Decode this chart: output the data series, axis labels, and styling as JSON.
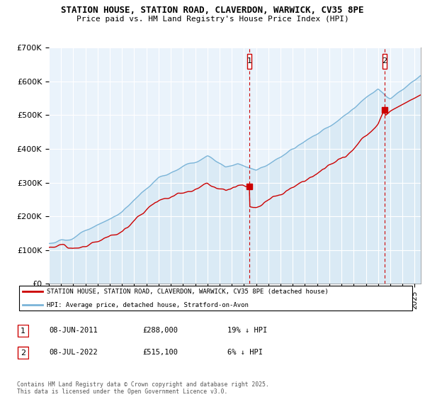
{
  "title_line1": "STATION HOUSE, STATION ROAD, CLAVERDON, WARWICK, CV35 8PE",
  "title_line2": "Price paid vs. HM Land Registry's House Price Index (HPI)",
  "ylim": [
    0,
    700000
  ],
  "yticks": [
    0,
    100000,
    200000,
    300000,
    400000,
    500000,
    600000,
    700000
  ],
  "ytick_labels": [
    "£0",
    "£100K",
    "£200K",
    "£300K",
    "£400K",
    "£500K",
    "£600K",
    "£700K"
  ],
  "hpi_color": "#7ab4d8",
  "hpi_fill_color": "#daeaf5",
  "price_color": "#cc0000",
  "vline_color": "#cc0000",
  "transaction1_x": 2011.44,
  "transaction1_price": 288000,
  "transaction2_x": 2022.52,
  "transaction2_price": 515100,
  "marker_color": "#cc0000",
  "legend_line1": "STATION HOUSE, STATION ROAD, CLAVERDON, WARWICK, CV35 8PE (detached house)",
  "legend_line2": "HPI: Average price, detached house, Stratford-on-Avon",
  "footnote": "Contains HM Land Registry data © Crown copyright and database right 2025.\nThis data is licensed under the Open Government Licence v3.0.",
  "table": [
    {
      "num": "1",
      "date": "08-JUN-2011",
      "price": "£288,000",
      "hpi": "19% ↓ HPI"
    },
    {
      "num": "2",
      "date": "08-JUL-2022",
      "price": "£515,100",
      "hpi": "6% ↓ HPI"
    }
  ],
  "xmin": 1995.0,
  "xmax": 2025.5,
  "bg_color": "#ffffff",
  "plot_bg_color": "#eaf3fb"
}
